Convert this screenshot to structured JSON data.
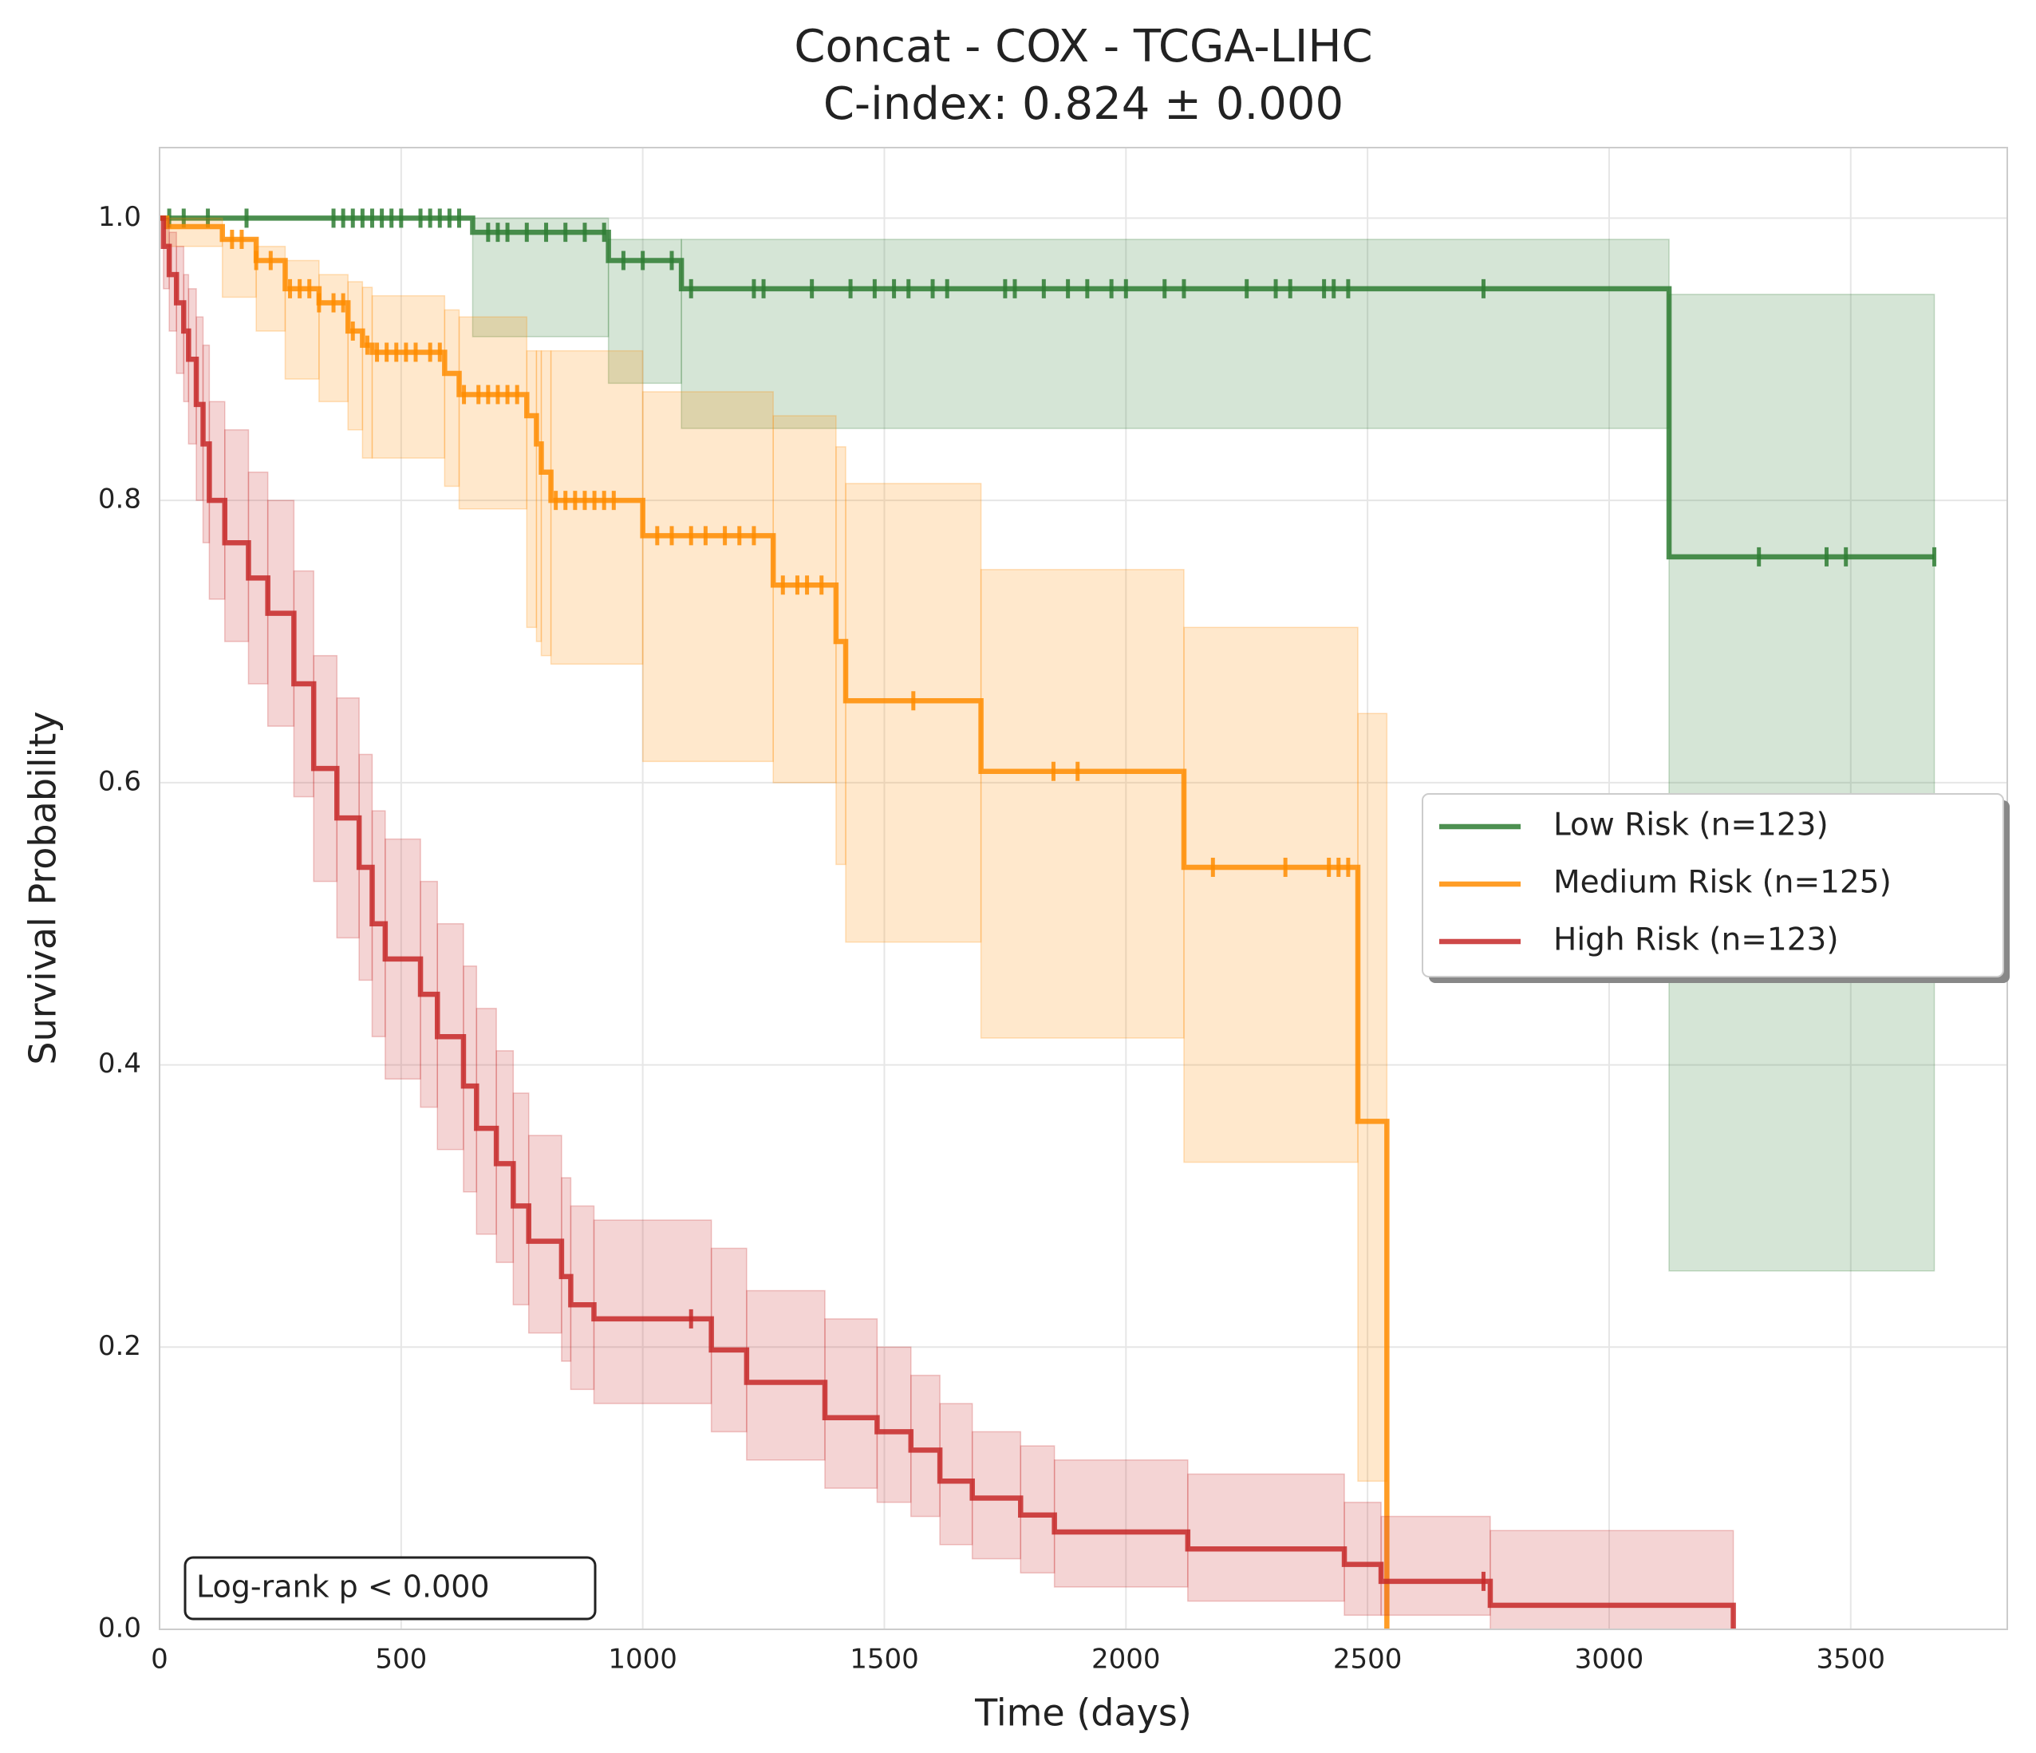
{
  "chart_data": {
    "type": "step",
    "title": "Concat - COX - TCGA-LIHC",
    "subtitle": "C-index: 0.824 ± 0.000",
    "xlabel": "Time (days)",
    "ylabel": "Survival Probability",
    "annotation": "Log-rank p < 0.000",
    "xlim": [
      0,
      3824
    ],
    "ylim": [
      0,
      1.05
    ],
    "xticks": [
      0,
      500,
      1000,
      1500,
      2000,
      2500,
      3000,
      3500
    ],
    "yticks": [
      {
        "value": 0,
        "label": "0.0"
      },
      0.2,
      0.4,
      0.6,
      0.8,
      {
        "value": 1,
        "label": "1.0"
      }
    ],
    "grid": true,
    "legend": "right",
    "series": [
      {
        "name": "Low Risk (n=123)",
        "color": "#2e7d32",
        "x": [
          0,
          648,
          929,
          1080,
          3124,
          3673
        ],
        "values": [
          1,
          0.99,
          0.97,
          0.95,
          0.76,
          0.76
        ],
        "lower": [
          1,
          0.916,
          0.883,
          0.851,
          0.254,
          0.254
        ],
        "upper": [
          1,
          1.0,
          0.985,
          0.985,
          0.946,
          0.946
        ],
        "censored_x": [
          20,
          50,
          100,
          180,
          360,
          380,
          400,
          420,
          440,
          460,
          480,
          500,
          540,
          560,
          580,
          600,
          620,
          680,
          700,
          720,
          760,
          800,
          840,
          880,
          920,
          960,
          1000,
          1060,
          1100,
          1230,
          1250,
          1350,
          1430,
          1480,
          1520,
          1550,
          1600,
          1630,
          1750,
          1770,
          1830,
          1880,
          1920,
          1970,
          2000,
          2080,
          2120,
          2250,
          2310,
          2340,
          2410,
          2430,
          2460,
          2740,
          3310,
          3450,
          3490,
          3673
        ],
        "censored_values": [
          1,
          1,
          1,
          1,
          1,
          1,
          1,
          1,
          1,
          1,
          1,
          1,
          1,
          1,
          1,
          1,
          1,
          0.99,
          0.99,
          0.99,
          0.99,
          0.99,
          0.99,
          0.99,
          0.99,
          0.97,
          0.97,
          0.97,
          0.95,
          0.95,
          0.95,
          0.95,
          0.95,
          0.95,
          0.95,
          0.95,
          0.95,
          0.95,
          0.95,
          0.95,
          0.95,
          0.95,
          0.95,
          0.95,
          0.95,
          0.95,
          0.95,
          0.95,
          0.95,
          0.95,
          0.95,
          0.95,
          0.95,
          0.95,
          0.76,
          0.76,
          0.76,
          0.76
        ]
      },
      {
        "name": "Medium Risk (n=125)",
        "color": "#ff8c00",
        "x": [
          0,
          15,
          130,
          200,
          260,
          330,
          390,
          420,
          440,
          590,
          620,
          760,
          780,
          790,
          810,
          1000,
          1270,
          1400,
          1420,
          1700,
          2120,
          2480,
          2540
        ],
        "values": [
          1,
          0.994,
          0.985,
          0.97,
          0.95,
          0.94,
          0.92,
          0.91,
          0.905,
          0.89,
          0.875,
          0.86,
          0.84,
          0.82,
          0.8,
          0.775,
          0.74,
          0.7,
          0.658,
          0.608,
          0.54,
          0.36,
          0
        ],
        "lower": [
          1,
          0.98,
          0.944,
          0.92,
          0.886,
          0.87,
          0.85,
          0.83,
          0.83,
          0.81,
          0.794,
          0.71,
          0.7,
          0.69,
          0.684,
          0.615,
          0.6,
          0.542,
          0.487,
          0.419,
          0.331,
          0.105,
          0
        ],
        "upper": [
          1,
          1,
          0.985,
          0.98,
          0.97,
          0.96,
          0.955,
          0.951,
          0.945,
          0.935,
          0.93,
          0.906,
          0.906,
          0.906,
          0.906,
          0.877,
          0.86,
          0.838,
          0.812,
          0.751,
          0.71,
          0.649,
          0
        ],
        "censored_x": [
          150,
          170,
          200,
          230,
          270,
          290,
          310,
          330,
          360,
          380,
          400,
          430,
          450,
          470,
          490,
          510,
          530,
          560,
          580,
          630,
          660,
          680,
          700,
          720,
          740,
          820,
          840,
          860,
          880,
          900,
          920,
          940,
          1030,
          1060,
          1100,
          1130,
          1170,
          1200,
          1230,
          1290,
          1320,
          1340,
          1370,
          1560,
          1850,
          1900,
          2180,
          2330,
          2420,
          2440,
          2460
        ],
        "censored_values": [
          0.985,
          0.985,
          0.97,
          0.97,
          0.95,
          0.95,
          0.95,
          0.94,
          0.94,
          0.94,
          0.92,
          0.91,
          0.905,
          0.905,
          0.905,
          0.905,
          0.905,
          0.905,
          0.905,
          0.875,
          0.875,
          0.875,
          0.875,
          0.875,
          0.875,
          0.8,
          0.8,
          0.8,
          0.8,
          0.8,
          0.8,
          0.8,
          0.775,
          0.775,
          0.775,
          0.775,
          0.775,
          0.775,
          0.775,
          0.74,
          0.74,
          0.74,
          0.74,
          0.658,
          0.608,
          0.608,
          0.54,
          0.54,
          0.54,
          0.54,
          0.54
        ]
      },
      {
        "name": "High Risk (n=123)",
        "color": "#c62828",
        "x": [
          0,
          8,
          20,
          35,
          50,
          60,
          76,
          90,
          103,
          135,
          184,
          224,
          278,
          319,
          367,
          413,
          440,
          467,
          540,
          575,
          629,
          656,
          697,
          732,
          764,
          832,
          851,
          899,
          1142,
          1215,
          1377,
          1485,
          1555,
          1615,
          1682,
          1782,
          1852,
          2128,
          2452,
          2528,
          2754,
          3257
        ],
        "values": [
          1,
          0.98,
          0.96,
          0.94,
          0.92,
          0.9,
          0.868,
          0.84,
          0.8,
          0.77,
          0.745,
          0.72,
          0.67,
          0.61,
          0.575,
          0.54,
          0.5,
          0.475,
          0.45,
          0.42,
          0.385,
          0.355,
          0.33,
          0.3,
          0.275,
          0.25,
          0.23,
          0.22,
          0.198,
          0.175,
          0.15,
          0.14,
          0.127,
          0.105,
          0.093,
          0.081,
          0.069,
          0.057,
          0.046,
          0.034,
          0.017,
          0
        ],
        "lower": [
          1,
          0.95,
          0.92,
          0.89,
          0.87,
          0.84,
          0.8,
          0.77,
          0.73,
          0.7,
          0.67,
          0.64,
          0.59,
          0.53,
          0.49,
          0.46,
          0.42,
          0.39,
          0.37,
          0.34,
          0.31,
          0.28,
          0.26,
          0.23,
          0.21,
          0.19,
          0.17,
          0.16,
          0.14,
          0.12,
          0.1,
          0.09,
          0.08,
          0.06,
          0.05,
          0.04,
          0.03,
          0.02,
          0.01,
          0.01,
          0,
          0
        ],
        "upper": [
          1,
          1,
          0.99,
          0.98,
          0.96,
          0.95,
          0.93,
          0.91,
          0.87,
          0.85,
          0.82,
          0.8,
          0.75,
          0.69,
          0.66,
          0.62,
          0.58,
          0.56,
          0.53,
          0.5,
          0.47,
          0.44,
          0.41,
          0.38,
          0.35,
          0.32,
          0.3,
          0.29,
          0.27,
          0.24,
          0.22,
          0.2,
          0.18,
          0.16,
          0.14,
          0.13,
          0.12,
          0.11,
          0.09,
          0.08,
          0.07,
          0.07
        ],
        "censored_x": [
          1100,
          2740
        ],
        "censored_values": [
          0.22,
          0.034
        ]
      }
    ]
  }
}
